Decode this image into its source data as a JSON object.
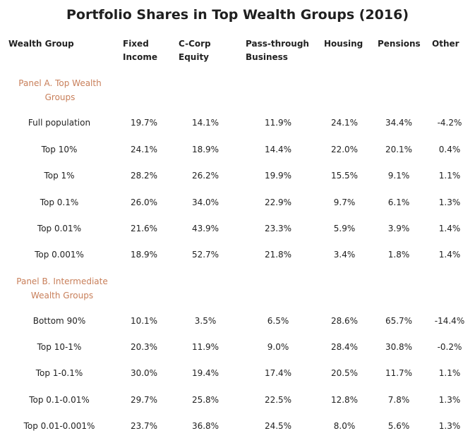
{
  "title": "Portfolio Shares in Top Wealth Groups (2016)",
  "columns": {
    "group": "Wealth Group",
    "fixed_income": "Fixed Income",
    "ccorp": "C-Corp Equity",
    "passthrough": "Pass-through Business",
    "housing": "Housing",
    "pensions": "Pensions",
    "other": "Other"
  },
  "panel_a": {
    "title": "Panel A. Top Wealth Groups",
    "rows": [
      {
        "group": "Full population",
        "fixed_income": "19.7%",
        "ccorp": "14.1%",
        "passthrough": "11.9%",
        "housing": "24.1%",
        "pensions": "34.4%",
        "other": "-4.2%"
      },
      {
        "group": "Top 10%",
        "fixed_income": "24.1%",
        "ccorp": "18.9%",
        "passthrough": "14.4%",
        "housing": "22.0%",
        "pensions": "20.1%",
        "other": "0.4%"
      },
      {
        "group": "Top 1%",
        "fixed_income": "28.2%",
        "ccorp": "26.2%",
        "passthrough": "19.9%",
        "housing": "15.5%",
        "pensions": "9.1%",
        "other": "1.1%"
      },
      {
        "group": "Top 0.1%",
        "fixed_income": "26.0%",
        "ccorp": "34.0%",
        "passthrough": "22.9%",
        "housing": "9.7%",
        "pensions": "6.1%",
        "other": "1.3%"
      },
      {
        "group": "Top 0.01%",
        "fixed_income": "21.6%",
        "ccorp": "43.9%",
        "passthrough": "23.3%",
        "housing": "5.9%",
        "pensions": "3.9%",
        "other": "1.4%"
      },
      {
        "group": "Top 0.001%",
        "fixed_income": "18.9%",
        "ccorp": "52.7%",
        "passthrough": "21.8%",
        "housing": "3.4%",
        "pensions": "1.8%",
        "other": "1.4%"
      }
    ]
  },
  "panel_b": {
    "title": "Panel B. Intermediate Wealth Groups",
    "rows": [
      {
        "group": "Bottom 90%",
        "fixed_income": "10.1%",
        "ccorp": "3.5%",
        "passthrough": "6.5%",
        "housing": "28.6%",
        "pensions": "65.7%",
        "other": "-14.4%"
      },
      {
        "group": "Top 10-1%",
        "fixed_income": "20.3%",
        "ccorp": "11.9%",
        "passthrough": "9.0%",
        "housing": "28.4%",
        "pensions": "30.8%",
        "other": "-0.2%"
      },
      {
        "group": "Top 1-0.1%",
        "fixed_income": "30.0%",
        "ccorp": "19.4%",
        "passthrough": "17.4%",
        "housing": "20.5%",
        "pensions": "11.7%",
        "other": "1.1%"
      },
      {
        "group": "Top 0.1-0.01%",
        "fixed_income": "29.7%",
        "ccorp": "25.8%",
        "passthrough": "22.5%",
        "housing": "12.8%",
        "pensions": "7.8%",
        "other": "1.3%"
      },
      {
        "group": "Top 0.01-0.001%",
        "fixed_income": "23.7%",
        "ccorp": "36.8%",
        "passthrough": "24.5%",
        "housing": "8.0%",
        "pensions": "5.6%",
        "other": "1.3%"
      }
    ]
  },
  "colors": {
    "panel_heading": "#c87f5a",
    "text": "#222222"
  }
}
